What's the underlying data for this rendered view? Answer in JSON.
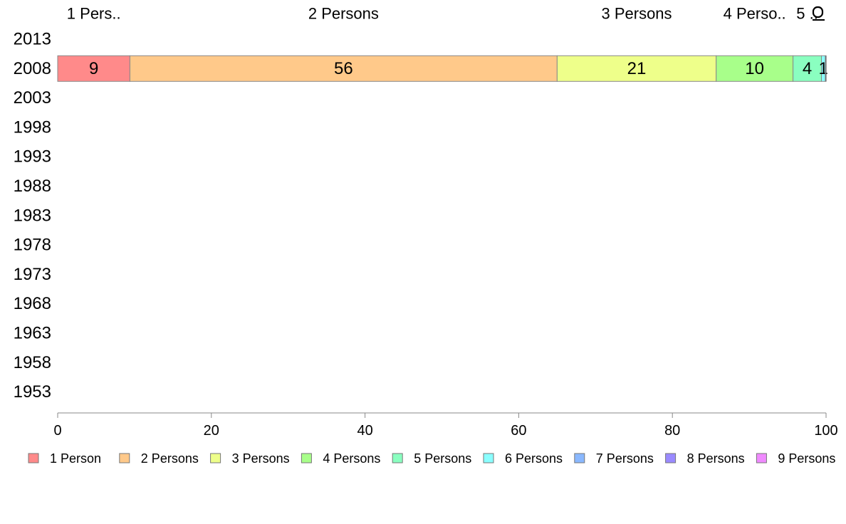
{
  "chart_data": {
    "type": "bar",
    "orientation": "horizontal",
    "stacked": true,
    "categories": [
      "2013",
      "2008",
      "2003",
      "1998",
      "1993",
      "1988",
      "1983",
      "1978",
      "1973",
      "1968",
      "1963",
      "1958",
      "1953"
    ],
    "series": [
      {
        "name": "1 Person",
        "color": "#ff8a8a",
        "values": [
          0,
          9.4,
          0,
          0,
          0,
          0,
          0,
          0,
          0,
          0,
          0,
          0,
          0
        ],
        "data_label": "9"
      },
      {
        "name": "2 Persons",
        "color": "#ffc98a",
        "values": [
          0,
          55.6,
          0,
          0,
          0,
          0,
          0,
          0,
          0,
          0,
          0,
          0,
          0
        ],
        "data_label": "56"
      },
      {
        "name": "3 Persons",
        "color": "#eeff8a",
        "values": [
          0,
          20.7,
          0,
          0,
          0,
          0,
          0,
          0,
          0,
          0,
          0,
          0,
          0
        ],
        "data_label": "21"
      },
      {
        "name": "4 Persons",
        "color": "#a8ff8a",
        "values": [
          0,
          10.0,
          0,
          0,
          0,
          0,
          0,
          0,
          0,
          0,
          0,
          0,
          0
        ],
        "data_label": "10"
      },
      {
        "name": "5 Persons",
        "color": "#8affc0",
        "values": [
          0,
          3.7,
          0,
          0,
          0,
          0,
          0,
          0,
          0,
          0,
          0,
          0,
          0
        ],
        "data_label": "4"
      },
      {
        "name": "6 Persons",
        "color": "#8affff",
        "values": [
          0,
          0.5,
          0,
          0,
          0,
          0,
          0,
          0,
          0,
          0,
          0,
          0,
          0
        ],
        "data_label": "1"
      },
      {
        "name": "7 Persons",
        "color": "#8ab8ff",
        "values": [
          0,
          0.1,
          0,
          0,
          0,
          0,
          0,
          0,
          0,
          0,
          0,
          0,
          0
        ],
        "data_label": ""
      },
      {
        "name": "8 Persons",
        "color": "#9a8aff",
        "values": [
          0,
          0.0,
          0,
          0,
          0,
          0,
          0,
          0,
          0,
          0,
          0,
          0,
          0
        ],
        "data_label": ""
      },
      {
        "name": "9 Persons",
        "color": "#f08aff",
        "values": [
          0,
          0.0,
          0,
          0,
          0,
          0,
          0,
          0,
          0,
          0,
          0,
          0,
          0
        ],
        "data_label": ""
      }
    ],
    "top_labels": [
      "1 Pers..",
      "2 Persons",
      "3 Persons",
      "4 Perso..",
      "5 ..",
      "",
      "",
      "",
      ""
    ],
    "x_ticks": [
      "0",
      "20",
      "40",
      "60",
      "80",
      "100"
    ],
    "xlim": [
      0,
      100
    ],
    "title": "",
    "xlabel": "",
    "ylabel": "",
    "grid": false,
    "legend_position": "bottom"
  }
}
